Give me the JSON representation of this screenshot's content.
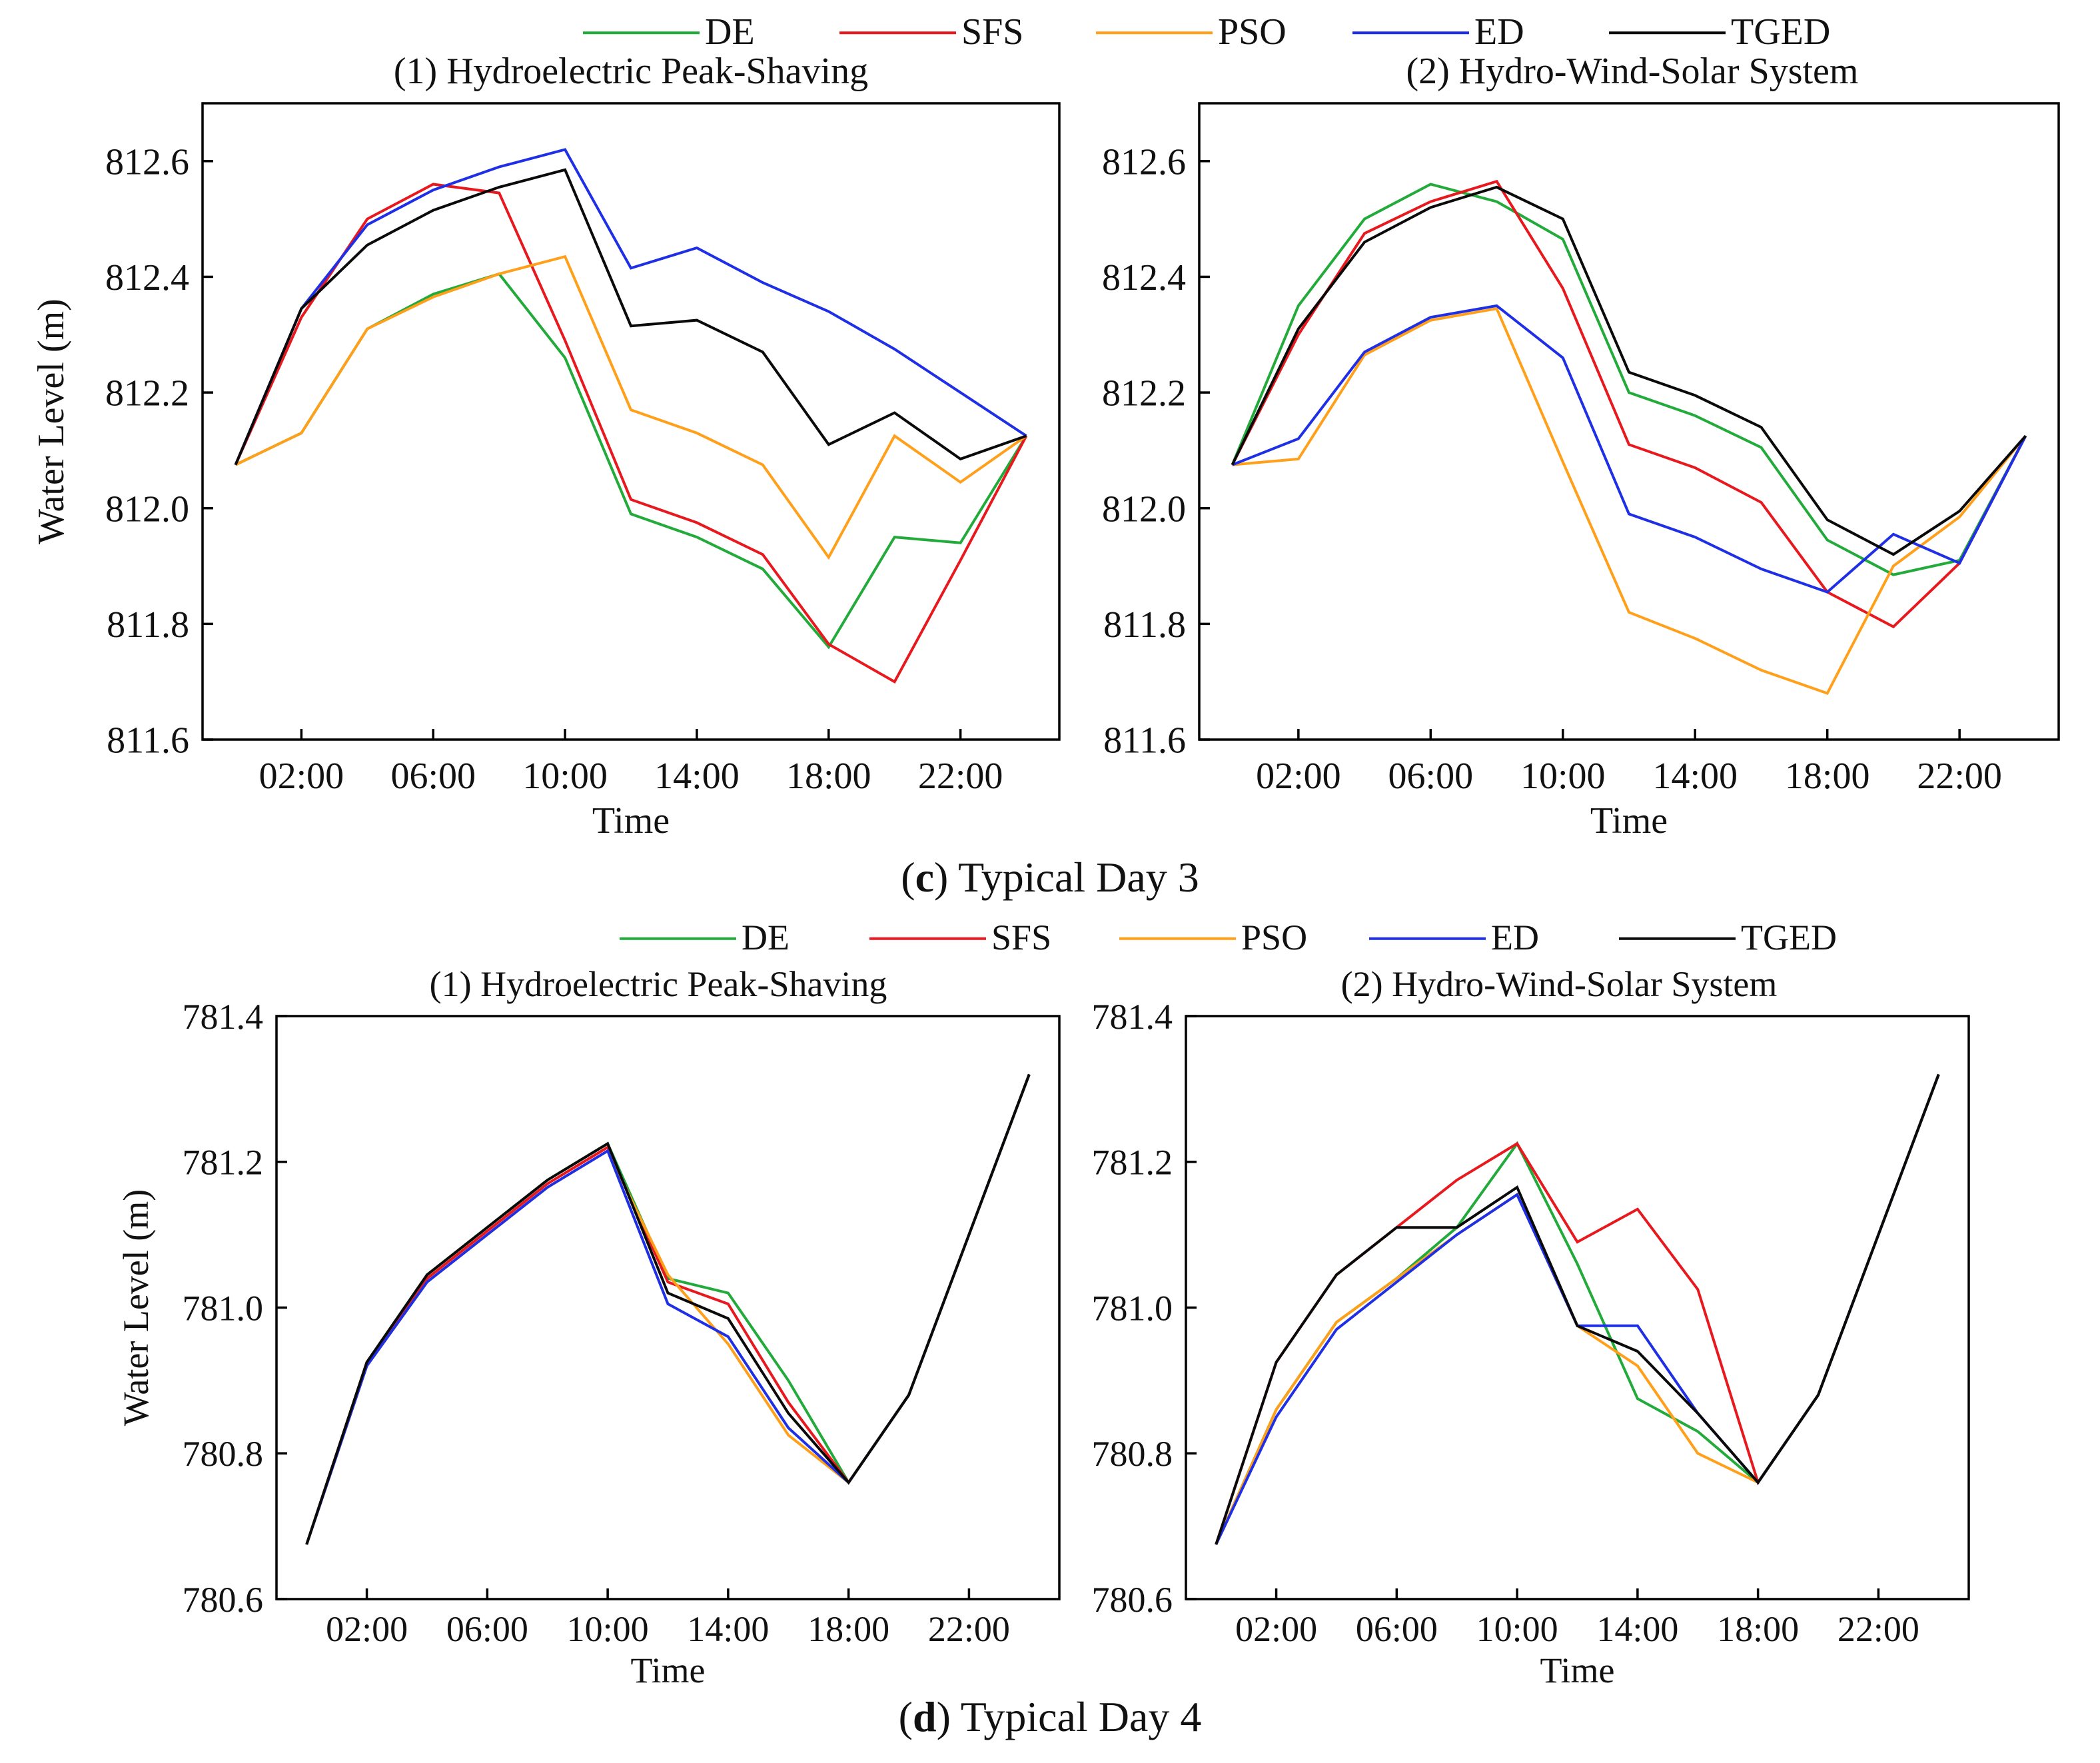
{
  "legend": {
    "entries": [
      {
        "name": "DE",
        "color": "#22aa3a"
      },
      {
        "name": "SFS",
        "color": "#e8191e"
      },
      {
        "name": "PSO",
        "color": "#ff9f1a"
      },
      {
        "name": "ED",
        "color": "#1f2fe6"
      },
      {
        "name": "TGED",
        "color": "#0a0a0a"
      }
    ]
  },
  "sections": [
    {
      "prefix": "(",
      "letter": "c",
      "suffix": ") Typical Day 3"
    },
    {
      "prefix": "(",
      "letter": "d",
      "suffix": ") Typical Day 4"
    }
  ],
  "chart_data": [
    {
      "type": "line",
      "title": "(1) Hydroelectric Peak-Shaving",
      "xlabel": "Time",
      "ylabel": "Water Level (m)",
      "x_ticks": [
        "02:00",
        "06:00",
        "10:00",
        "14:00",
        "18:00",
        "22:00"
      ],
      "y_ticks": [
        "811.6",
        "811.8",
        "812.0",
        "812.2",
        "812.4",
        "812.6"
      ],
      "xlim": [
        -1,
        25
      ],
      "ylim": [
        811.6,
        812.7
      ],
      "x": [
        0,
        2,
        4,
        6,
        8,
        10,
        12,
        14,
        16,
        18,
        20,
        22,
        24
      ],
      "series": [
        {
          "name": "DE",
          "values": [
            812.075,
            812.13,
            812.31,
            812.37,
            812.405,
            812.26,
            811.99,
            811.95,
            811.895,
            811.76,
            811.95,
            811.94,
            812.125
          ]
        },
        {
          "name": "SFS",
          "values": [
            812.075,
            812.33,
            812.5,
            812.56,
            812.545,
            812.29,
            812.015,
            811.975,
            811.92,
            811.765,
            811.7,
            811.91,
            812.125
          ]
        },
        {
          "name": "PSO",
          "values": [
            812.075,
            812.13,
            812.31,
            812.365,
            812.405,
            812.435,
            812.17,
            812.13,
            812.075,
            811.915,
            812.125,
            812.045,
            812.125
          ]
        },
        {
          "name": "ED",
          "values": [
            812.075,
            812.345,
            812.49,
            812.55,
            812.59,
            812.62,
            812.415,
            812.45,
            812.39,
            812.34,
            812.275,
            812.2,
            812.125
          ]
        },
        {
          "name": "TGED",
          "values": [
            812.075,
            812.345,
            812.455,
            812.515,
            812.555,
            812.585,
            812.315,
            812.325,
            812.27,
            812.11,
            812.165,
            812.085,
            812.125
          ]
        }
      ]
    },
    {
      "type": "line",
      "title": "(2) Hydro-Wind-Solar System",
      "xlabel": "Time",
      "ylabel": "",
      "x_ticks": [
        "02:00",
        "06:00",
        "10:00",
        "14:00",
        "18:00",
        "22:00"
      ],
      "y_ticks": [
        "811.6",
        "811.8",
        "812.0",
        "812.2",
        "812.4",
        "812.6"
      ],
      "xlim": [
        -1,
        25
      ],
      "ylim": [
        811.6,
        812.7
      ],
      "x": [
        0,
        2,
        4,
        6,
        8,
        10,
        12,
        14,
        16,
        18,
        20,
        22,
        24
      ],
      "series": [
        {
          "name": "DE",
          "values": [
            812.075,
            812.35,
            812.5,
            812.56,
            812.53,
            812.465,
            812.2,
            812.16,
            812.105,
            811.945,
            811.885,
            811.91,
            812.125
          ]
        },
        {
          "name": "SFS",
          "values": [
            812.075,
            812.3,
            812.475,
            812.53,
            812.565,
            812.38,
            812.11,
            812.07,
            812.01,
            811.855,
            811.795,
            811.905,
            812.125
          ]
        },
        {
          "name": "PSO",
          "values": [
            812.075,
            812.085,
            812.265,
            812.325,
            812.345,
            812.08,
            811.82,
            811.775,
            811.72,
            811.68,
            811.9,
            811.985,
            812.125
          ]
        },
        {
          "name": "ED",
          "values": [
            812.075,
            812.12,
            812.27,
            812.33,
            812.35,
            812.26,
            811.99,
            811.95,
            811.895,
            811.855,
            811.955,
            811.905,
            812.125
          ]
        },
        {
          "name": "TGED",
          "values": [
            812.075,
            812.31,
            812.46,
            812.52,
            812.555,
            812.5,
            812.235,
            812.195,
            812.14,
            811.98,
            811.92,
            811.995,
            812.125
          ]
        }
      ]
    },
    {
      "type": "line",
      "title": "(1) Hydroelectric Peak-Shaving",
      "xlabel": "Time",
      "ylabel": "Water Level (m)",
      "x_ticks": [
        "02:00",
        "06:00",
        "10:00",
        "14:00",
        "18:00",
        "22:00"
      ],
      "y_ticks": [
        "780.6",
        "780.8",
        "781.0",
        "781.2",
        "781.4"
      ],
      "xlim": [
        -1,
        25
      ],
      "ylim": [
        780.6,
        781.4
      ],
      "x": [
        0,
        2,
        4,
        6,
        8,
        10,
        12,
        14,
        16,
        18,
        20,
        22,
        24
      ],
      "series": [
        {
          "name": "DE",
          "values": [
            780.675,
            780.925,
            781.045,
            781.11,
            781.175,
            781.225,
            781.04,
            781.02,
            780.9,
            780.76,
            780.88,
            781.1,
            781.32
          ]
        },
        {
          "name": "SFS",
          "values": [
            780.675,
            780.925,
            781.04,
            781.105,
            781.17,
            781.22,
            781.035,
            781.005,
            780.87,
            780.76,
            780.88,
            781.1,
            781.32
          ]
        },
        {
          "name": "PSO",
          "values": [
            780.675,
            780.92,
            781.035,
            781.1,
            781.165,
            781.215,
            781.045,
            780.95,
            780.825,
            780.76,
            780.88,
            781.1,
            781.32
          ]
        },
        {
          "name": "ED",
          "values": [
            780.675,
            780.92,
            781.035,
            781.1,
            781.165,
            781.215,
            781.005,
            780.96,
            780.835,
            780.76,
            780.88,
            781.1,
            781.32
          ]
        },
        {
          "name": "TGED",
          "values": [
            780.675,
            780.925,
            781.045,
            781.11,
            781.175,
            781.225,
            781.02,
            780.985,
            780.855,
            780.76,
            780.88,
            781.1,
            781.32
          ]
        }
      ]
    },
    {
      "type": "line",
      "title": "(2) Hydro-Wind-Solar System",
      "xlabel": "Time",
      "ylabel": "",
      "x_ticks": [
        "02:00",
        "06:00",
        "10:00",
        "14:00",
        "18:00",
        "22:00"
      ],
      "y_ticks": [
        "780.6",
        "780.8",
        "781.0",
        "781.2",
        "781.4"
      ],
      "xlim": [
        -1,
        25
      ],
      "ylim": [
        780.6,
        781.4
      ],
      "x": [
        0,
        2,
        4,
        6,
        8,
        10,
        12,
        14,
        16,
        18,
        20,
        22,
        24
      ],
      "series": [
        {
          "name": "DE",
          "values": [
            780.675,
            780.86,
            780.98,
            781.04,
            781.11,
            781.225,
            781.06,
            780.875,
            780.83,
            780.76,
            780.88,
            781.1,
            781.32
          ]
        },
        {
          "name": "SFS",
          "values": [
            780.675,
            780.925,
            781.045,
            781.11,
            781.175,
            781.225,
            781.09,
            781.135,
            781.025,
            780.76,
            780.88,
            781.1,
            781.32
          ]
        },
        {
          "name": "PSO",
          "values": [
            780.675,
            780.86,
            780.98,
            781.04,
            781.1,
            781.155,
            780.975,
            780.92,
            780.8,
            780.76,
            780.88,
            781.1,
            781.32
          ]
        },
        {
          "name": "ED",
          "values": [
            780.675,
            780.85,
            780.97,
            781.035,
            781.1,
            781.155,
            780.975,
            780.975,
            780.855,
            780.76,
            780.88,
            781.1,
            781.32
          ]
        },
        {
          "name": "TGED",
          "values": [
            780.675,
            780.925,
            781.045,
            781.11,
            781.11,
            781.165,
            780.975,
            780.94,
            780.855,
            780.76,
            780.88,
            781.1,
            781.32
          ]
        }
      ]
    }
  ]
}
